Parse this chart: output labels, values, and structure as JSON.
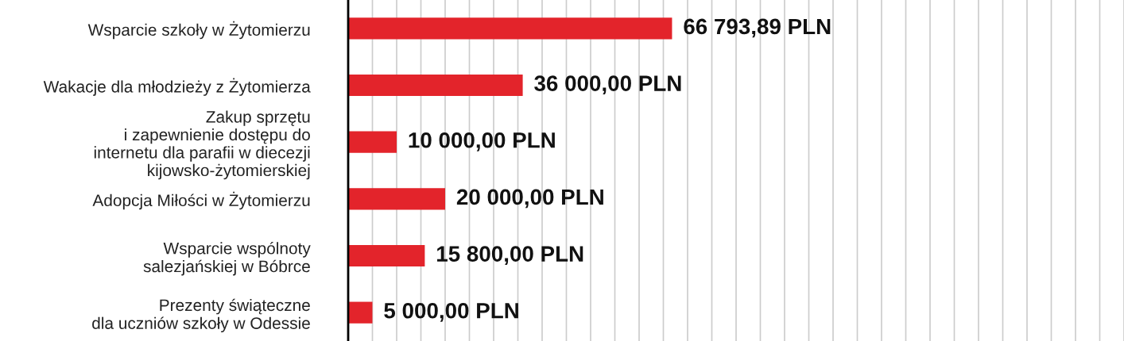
{
  "chart_data": {
    "type": "bar",
    "orientation": "horizontal",
    "categories": [
      "Wsparcie szkoły w Żytomierzu",
      "Wakacje dla młodzieży z Żytomierza",
      "Zakup sprzętu\ni zapewnienie dostępu do\ninternetu dla parafii w diecezji\nkijowsko-żytomierskiej",
      "Adopcja Miłości w Żytomierzu",
      "Wsparcie wspólnoty\nsalezjańskiej w Bóbrce",
      "Prezenty świąteczne\ndla uczniów szkoły w Odessie"
    ],
    "values": [
      66793.89,
      36000,
      10000,
      20000,
      15800,
      5000
    ],
    "value_labels": [
      "66 793,89 PLN",
      "36 000,00 PLN",
      "10 000,00 PLN",
      "20 000,00 PLN",
      "15 800,00 PLN",
      "5 000,00 PLN"
    ],
    "color": "#e3242b",
    "xlim": [
      0,
      160000
    ],
    "xticks": [
      {
        "value": 5000,
        "label": null
      },
      {
        "value": 10000,
        "label": null
      },
      {
        "value": 15000,
        "label": null
      },
      {
        "value": 20000,
        "label": null
      },
      {
        "value": 25000,
        "label": null
      },
      {
        "value": 30000,
        "label": null
      },
      {
        "value": 35000,
        "label": null
      },
      {
        "value": 40000,
        "label": null
      },
      {
        "value": 45000,
        "label": null
      },
      {
        "value": 50000,
        "label": null
      },
      {
        "value": 55000,
        "label": null
      },
      {
        "value": 60000,
        "label": null
      },
      {
        "value": 65000,
        "label": null
      },
      {
        "value": 70000,
        "label": null
      },
      {
        "value": 75000,
        "label": null
      },
      {
        "value": 80000,
        "label": null
      },
      {
        "value": 85000,
        "label": null
      },
      {
        "value": 90000,
        "label": null
      },
      {
        "value": 95000,
        "label": null
      },
      {
        "value": 100000,
        "label": null
      },
      {
        "value": 105000,
        "label": null
      },
      {
        "value": 110000,
        "label": null
      },
      {
        "value": 115000,
        "label": null
      },
      {
        "value": 120000,
        "label": null
      },
      {
        "value": 125000,
        "label": null
      },
      {
        "value": 130000,
        "label": null
      },
      {
        "value": 135000,
        "label": null
      },
      {
        "value": 140000,
        "label": null
      },
      {
        "value": 145000,
        "label": null
      },
      {
        "value": 150000,
        "label": null
      },
      {
        "value": 155000,
        "label": null
      },
      {
        "value": 160000,
        "label": null
      }
    ],
    "grid": "x",
    "tick_labels": "y"
  }
}
